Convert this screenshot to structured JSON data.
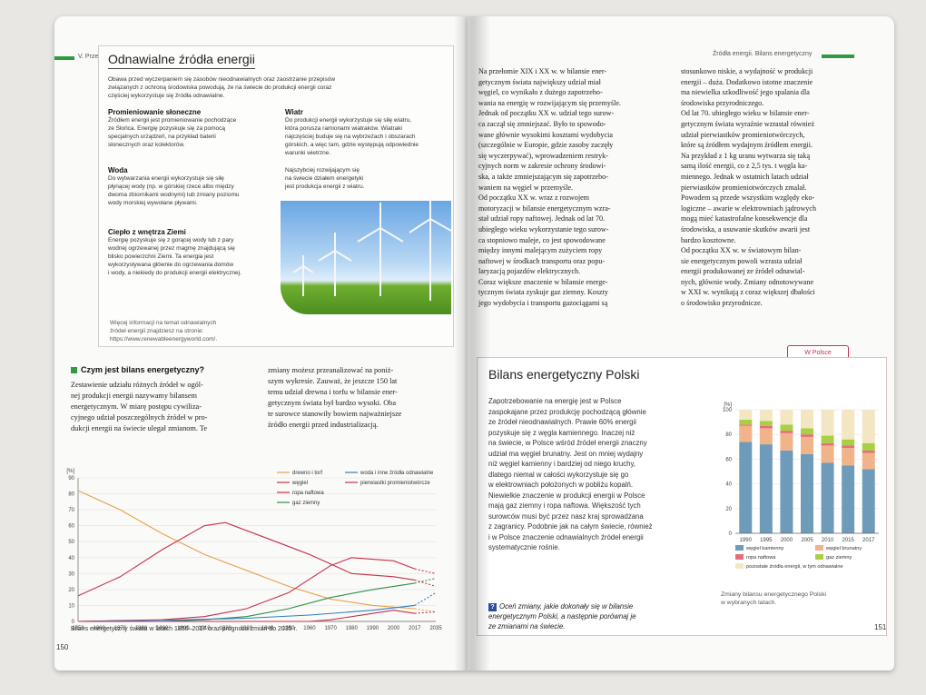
{
  "left_page": {
    "header_chapter": "V. Przemysł",
    "box_title": "Odnawialne źródła energii",
    "intro": [
      "Obawa przed wyczerpaniem się zasobów nieodnawialnych oraz zaostrzanie przepisów",
      "związanych z ochroną środowiska powodują, że na świecie do produkcji energii coraz",
      "częściej wykorzystuje się źródła odnawialne."
    ],
    "sources": [
      {
        "title": "Promieniowanie słoneczne",
        "lines": [
          "Źródłem energii jest promieniowanie pochodzące",
          "ze Słońca. Energię pozyskuje się za pomocą",
          "specjalnych urządzeń, na przykład baterii",
          "słonecznych oraz kolektorów."
        ]
      },
      {
        "title": "Woda",
        "lines": [
          "Do wytwarzania energii wykorzystuje się siłę",
          "płynącej wody (np. w górskiej rzece albo między",
          "dwoma zbiornikami wodnymi) lub zmiany poziomu",
          "wody morskiej wywołane pływami."
        ]
      },
      {
        "title": "Ciepło z wnętrza Ziemi",
        "lines": [
          "Energię pozyskuje się z gorącej wody lub z pary",
          "wodnej ogrzewanej przez magmę znajdującą się",
          "blisko powierzchni Ziemi. Ta energia jest",
          "wykorzystywana głównie do ogrzewania domów",
          "i wody, a niekiedy do produkcji energii elektrycznej."
        ]
      },
      {
        "title": "Wiatr",
        "lines": [
          "Do produkcji energii wykorzystuje się siłę wiatru,",
          "która porusza ramionami wiatraków. Wiatraki",
          "najczęściej buduje się na wybrzeżach i obszarach",
          "górskich, a więc tam, gdzie występują odpowiednie",
          "warunki wietrzne."
        ]
      }
    ],
    "photo_caption": [
      "Najszybciej rozwijającym się",
      "na świecie działem energetyki",
      "jest produkcja energii z wiatru."
    ],
    "more_info": [
      "Więcej informacji na temat odnawialnych",
      "źródeł energii znajdziesz na stronie:",
      "https://www.renewableenergyworld.com/."
    ],
    "section_title": "Czym jest bilans energetyczny?",
    "col1": [
      "Zestawienie udziału różnych źródeł w ogól-",
      "nej produkcji energii nazywamy bilansem",
      "energetycznym. W miarę postępu cywiliza-",
      "cyjnego udział poszczególnych źródeł w pro-",
      "dukcji energii na świecie ulegał zmianom. Te"
    ],
    "col2": [
      "zmiany możesz przeanalizować na poniż-",
      "szym wykresie. Zauważ, że jeszcze 150 lat",
      "temu udział drewna i torfu w bilansie ener-",
      "getycznym świata był bardzo wysoki. Oba",
      "te surowce stanowiły bowiem najważniejsze",
      "źródło energii przed industrializacją."
    ],
    "chart_caption": "Bilans energetyczny świata w latach 1850–2017 oraz prognoza zmian do 2035 r.",
    "page_number": "150"
  },
  "right_page": {
    "header": "Źródła energii. Bilans energetyczny",
    "col1": [
      "Na przełomie XIX i XX w. w bilansie ener-",
      "getycznym świata największy udział miał",
      "węgiel, co wynikało z dużego zapotrzebo-",
      "wania na energię w rozwijającym się przemyśle.",
      "Jednak od początku XX w. udział tego surow-",
      "ca zaczął się zmniejszać. Było to spowodo-",
      "wane głównie wysokimi kosztami wydobycia",
      "(szczególnie w Europie, gdzie zasoby zaczęły",
      "się wyczerpywać), wprowadzeniem restryk-",
      "cyjnych norm w zakresie ochrony środowi-",
      "ska, a także zmniejszającym się zapotrzebo-",
      "waniem na węgiel w przemyśle.",
      "Od początku XX w. wraz z rozwojem",
      "motoryzacji w bilansie energetycznym wzra-",
      "stał udział ropy naftowej. Jednak od lat 70.",
      "ubiegłego wieku wykorzystanie tego surow-",
      "ca stopniowo maleje, co jest spowodowane",
      "między innymi malejącym zużyciem ropy",
      "naftowej w środkach transportu oraz popu-",
      "laryzacją pojazdów elektrycznych.",
      "Coraz większe znaczenie w bilansie energe-",
      "tycznym świata zyskuje gaz ziemny. Koszty",
      "jego wydobycia i transportu gazociągami są"
    ],
    "col2": [
      "stosunkowo niskie, a wydajność w produkcji",
      "energii – duża. Dodatkowo istotne znaczenie",
      "ma niewielka szkodliwość jego spalania dla",
      "środowiska przyrodniczego.",
      "Od lat 70. ubiegłego wieku w bilansie ener-",
      "getycznym świata wyraźnie wzrastał również",
      "udział pierwiastków promieniotwórczych,",
      "które są źródłem wydajnym źródłem energii.",
      "Na przykład z 1 kg uranu wytwarza się taką",
      "samą ilość energii, co z 2,5 tys. t węgla ka-",
      "miennego. Jednak w ostatnich latach udział",
      "pierwiastków promieniotwórczych zmalał.",
      "Powodem są przede wszystkim względy eko-",
      "logiczne – awarie w elektrowniach jądrowych",
      "mogą mieć katastrofalne konsekwencje dla",
      "środowiska, a usuwanie skutków awarii jest",
      "bardzo kosztowne.",
      "Od początku XX w. w światowym bilan-",
      "sie energetycznym powoli wzrasta udział",
      "energii produkowanej ze źródeł odnawial-",
      "nych, głównie wody. Zmiany odnotowywane",
      "w XXI w. wynikają z coraz większej dbałości",
      "o środowisko przyrodnicze."
    ],
    "tag": "W Polsce",
    "box_title": "Bilans energetyczny Polski",
    "box_text": [
      "Zapotrzebowanie na energię jest w Polsce",
      "zaspokajane przez produkcję pochodzącą głównie",
      "ze źródeł nieodnawialnych. Prawie 60% energii",
      "pozyskuje się z węgla kamiennego. Inaczej niż",
      "na świecie, w Polsce wśród źródeł energii znaczny",
      "udział ma węgiel brunatny. Jest on mniej wydajny",
      "niż węgiel kamienny i bardziej od niego kruchy,",
      "dlatego niemal w całości wykorzystuje się go",
      "w elektrowniach położonych w pobliżu kopalń.",
      "Niewielkie znaczenie w produkcji energii w Polsce",
      "mają gaz ziemny i ropa naftowa. Większość tych",
      "surowców musi być przez nasz kraj sprowadzana",
      "z zagranicy. Podobnie jak na całym świecie, również",
      "i w Polsce znaczenie odnawialnych źródeł energii",
      "systematycznie rośnie."
    ],
    "question": [
      "Oceń zmiany, jakie dokonały się w bilansie",
      "energetycznym Polski, a następnie porównaj je",
      "ze zmianami na świecie."
    ],
    "chart_caption": [
      "Zmiany bilansu energetycznego Polski",
      "w wybranych latach."
    ],
    "page_number": "151"
  },
  "chart_data": [
    {
      "type": "line",
      "ylabel": "[%]",
      "ylim": [
        0,
        90
      ],
      "yticks": [
        0,
        10,
        20,
        30,
        40,
        50,
        60,
        70,
        80,
        90
      ],
      "xticks": [
        "1850",
        "1860",
        "1870",
        "1880",
        "1890",
        "1900",
        "1910",
        "1920",
        "1930",
        "1940",
        "1950",
        "1960",
        "1970",
        "1980",
        "1990",
        "2000",
        "2017",
        "2035"
      ],
      "legend_placement": "top-right",
      "series": [
        {
          "name": "drewno i torf",
          "color": "#e9a14a",
          "x": [
            1850,
            1870,
            1890,
            1910,
            1930,
            1950,
            1970,
            1990,
            2017
          ],
          "y": [
            82,
            70,
            55,
            42,
            32,
            22,
            14,
            10,
            8
          ],
          "forecast": [
            [
              2017,
              8
            ],
            [
              2035,
              6
            ]
          ]
        },
        {
          "name": "węgiel",
          "color": "#c8304b",
          "x": [
            1850,
            1870,
            1890,
            1910,
            1920,
            1940,
            1960,
            1980,
            2000,
            2017
          ],
          "y": [
            16,
            28,
            45,
            60,
            62,
            52,
            42,
            30,
            28,
            26
          ],
          "forecast": [
            [
              2017,
              26
            ],
            [
              2035,
              22
            ]
          ]
        },
        {
          "name": "ropa naftowa",
          "color": "#c8304b",
          "x": [
            1850,
            1890,
            1910,
            1930,
            1950,
            1970,
            1980,
            2000,
            2017
          ],
          "y": [
            0,
            1,
            3,
            8,
            18,
            35,
            40,
            38,
            33
          ],
          "forecast": [
            [
              2017,
              33
            ],
            [
              2035,
              30
            ]
          ]
        },
        {
          "name": "gaz ziemny",
          "color": "#2e8f4a",
          "x": [
            1850,
            1890,
            1910,
            1930,
            1950,
            1970,
            1990,
            2017
          ],
          "y": [
            0,
            0,
            1,
            3,
            8,
            15,
            20,
            24
          ],
          "forecast": [
            [
              2017,
              24
            ],
            [
              2035,
              27
            ]
          ]
        },
        {
          "name": "woda i inne źródła odnawialne",
          "color": "#2f7fc1",
          "x": [
            1850,
            1900,
            1930,
            1960,
            1990,
            2017
          ],
          "y": [
            0,
            1,
            2,
            4,
            7,
            10
          ],
          "forecast": [
            [
              2017,
              10
            ],
            [
              2035,
              18
            ]
          ]
        },
        {
          "name": "pierwiastki promieniotwórcze",
          "color": "#c8304b",
          "x": [
            1850,
            1960,
            1970,
            1990,
            2000,
            2017
          ],
          "y": [
            0,
            0,
            1,
            5,
            7,
            5
          ],
          "forecast": [
            [
              2017,
              5
            ],
            [
              2035,
              6
            ]
          ]
        }
      ]
    },
    {
      "type": "bar",
      "stacked": true,
      "ylabel": "[%]",
      "ylim": [
        0,
        100
      ],
      "yticks": [
        0,
        20,
        40,
        60,
        80,
        100
      ],
      "categories": [
        "1990",
        "1995",
        "2000",
        "2005",
        "2010",
        "2015",
        "2017"
      ],
      "series": [
        {
          "name": "węgiel kamienny",
          "color": "#6e9bb9",
          "values": [
            74,
            72,
            67,
            64,
            57,
            55,
            52
          ]
        },
        {
          "name": "węgiel brunatny",
          "color": "#f0b38a",
          "values": [
            13,
            13,
            14,
            14,
            14,
            14,
            13
          ]
        },
        {
          "name": "ropa naftowa",
          "color": "#e86d7a",
          "values": [
            1,
            2,
            2,
            2,
            2,
            2,
            2
          ]
        },
        {
          "name": "gaz ziemny",
          "color": "#a9cf44",
          "values": [
            4,
            4,
            5,
            5,
            6,
            5,
            6
          ]
        },
        {
          "name": "pozostałe źródła energii, w tym odnawialne",
          "color": "#f3e6c2",
          "values": [
            8,
            9,
            12,
            15,
            21,
            24,
            27
          ]
        }
      ]
    }
  ]
}
